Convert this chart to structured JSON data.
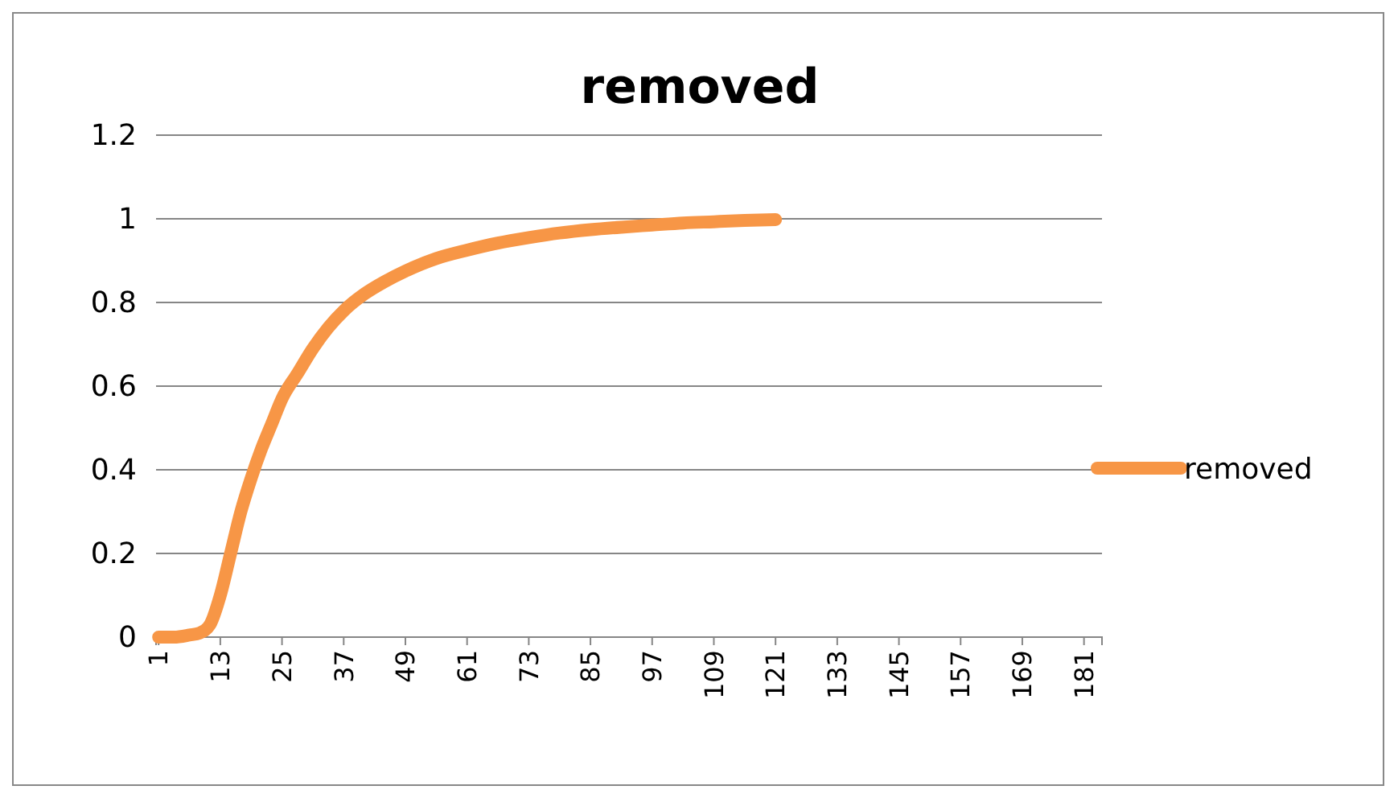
{
  "chart_data": {
    "type": "line",
    "title": "removed",
    "x": [
      1,
      4,
      7,
      9,
      11,
      13,
      15,
      17,
      19,
      21,
      23,
      25,
      28,
      31,
      34,
      37,
      41,
      45,
      49,
      55,
      61,
      67,
      73,
      79,
      85,
      91,
      97,
      103,
      109,
      115,
      121
    ],
    "series": [
      {
        "name": "removed",
        "color": "#f79646",
        "values": [
          0,
          0,
          0.005,
          0.01,
          0.03,
          0.1,
          0.2,
          0.3,
          0.38,
          0.45,
          0.51,
          0.57,
          0.63,
          0.69,
          0.74,
          0.78,
          0.82,
          0.85,
          0.875,
          0.905,
          0.925,
          0.942,
          0.955,
          0.966,
          0.974,
          0.98,
          0.985,
          0.99,
          0.993,
          0.996,
          0.998
        ]
      }
    ],
    "xlim": [
      0.5,
      184.5
    ],
    "xticks": [
      1,
      13,
      25,
      37,
      49,
      61,
      73,
      85,
      97,
      109,
      121,
      133,
      145,
      157,
      169,
      181
    ],
    "ylim": [
      0,
      1.2
    ],
    "yticks": [
      0,
      {
        "value": 0.2,
        "label": "0.2"
      },
      {
        "value": 0.4,
        "label": "0.4"
      },
      {
        "value": 0.6,
        "label": "0.6"
      },
      {
        "value": 0.8,
        "label": "0.8"
      },
      1,
      {
        "value": 1.2,
        "label": "1.2"
      }
    ],
    "grid": "y",
    "legend": "right",
    "marker": "none",
    "line_style": "solid"
  }
}
